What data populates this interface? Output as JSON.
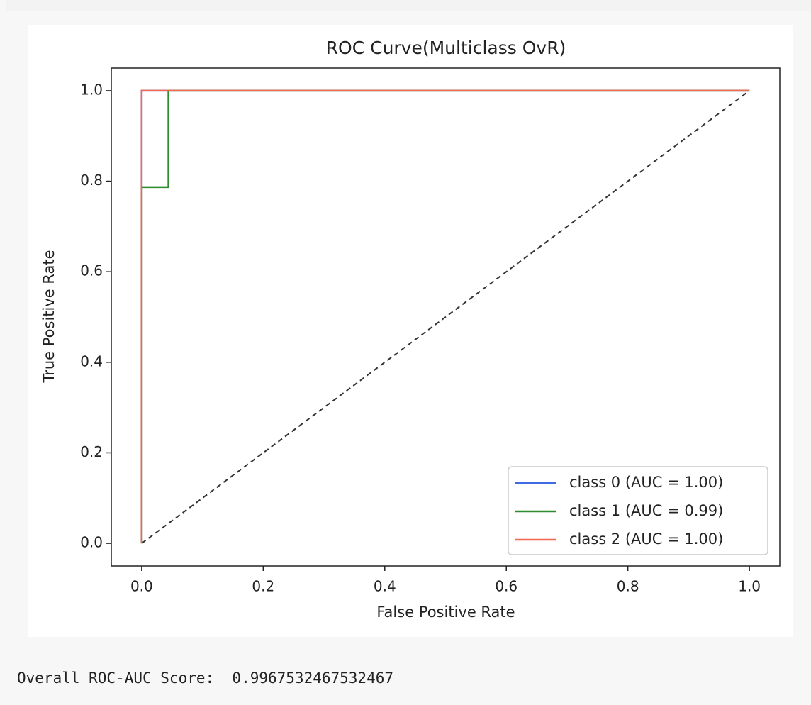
{
  "chart_data": {
    "type": "line",
    "title": "ROC Curve(Multiclass OvR)",
    "xlabel": "False Positive Rate",
    "ylabel": "True Positive Rate",
    "xlim": [
      -0.05,
      1.05
    ],
    "ylim": [
      -0.05,
      1.05
    ],
    "xticks": [
      {
        "value": 0,
        "label": "0.0"
      },
      0.2,
      0.4,
      0.6,
      0.8,
      {
        "value": 1,
        "label": "1.0"
      }
    ],
    "yticks": [
      {
        "value": 0,
        "label": "0.0"
      },
      0.2,
      0.4,
      0.6,
      0.8,
      {
        "value": 1,
        "label": "1.0"
      }
    ],
    "grid": false,
    "legend": "lower right",
    "series": [
      {
        "name": "class 0 (AUC = 1.00)",
        "color": "#4169e1",
        "x": [
          0,
          0,
          1
        ],
        "values": [
          0,
          1,
          1
        ]
      },
      {
        "name": "class 1 (AUC = 0.99)",
        "color": "#2e8b2e",
        "x": [
          0,
          0,
          0.044,
          0.044,
          1
        ],
        "values": [
          0,
          0.787,
          0.787,
          1,
          1
        ]
      },
      {
        "name": "class 2 (AUC = 1.00)",
        "color": "#f4674f",
        "x": [
          0,
          0,
          1
        ],
        "values": [
          0,
          1,
          1
        ]
      }
    ],
    "diagonal": {
      "color": "#333333",
      "x": [
        0,
        1
      ],
      "values": [
        0,
        1
      ]
    }
  },
  "output_text": "Overall ROC-AUC Score:  0.9967532467532467"
}
